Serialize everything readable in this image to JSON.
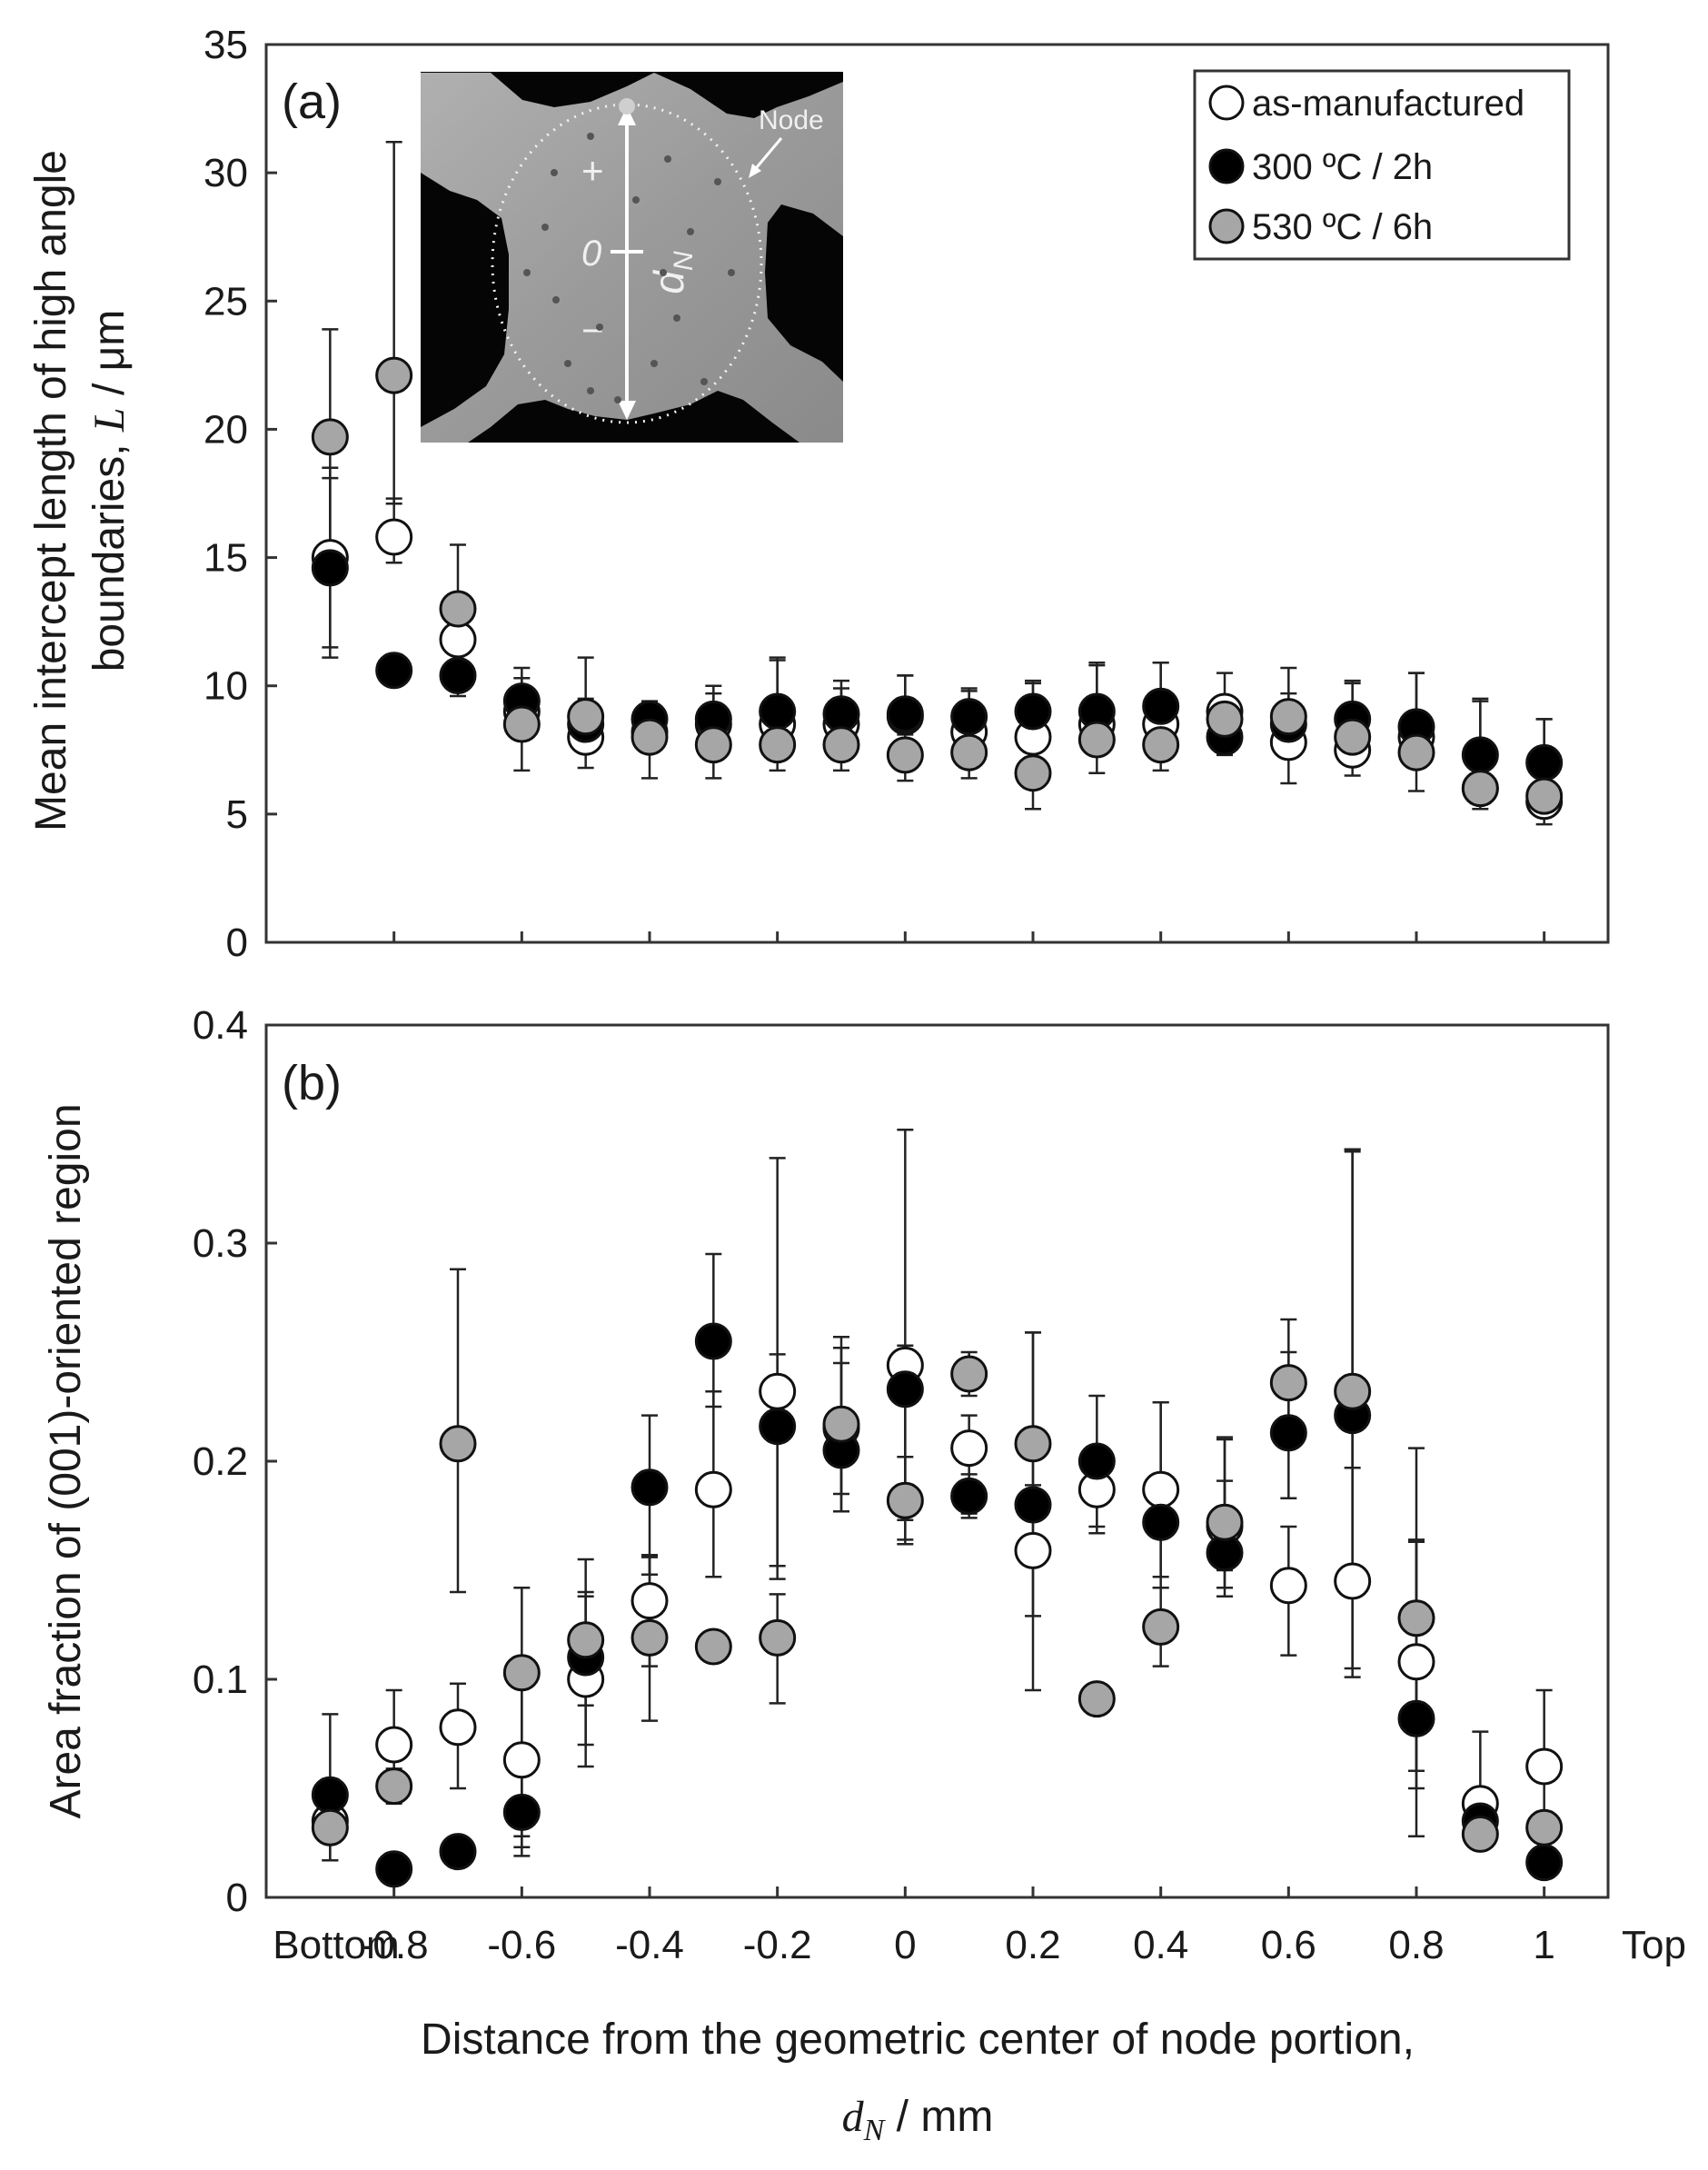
{
  "colors": {
    "as_manufactured": "#ffffff",
    "heat_300": "#000000",
    "heat_530": "#a6a6a6",
    "frame": "#333333"
  },
  "x_axis": {
    "title_line1": "Distance from the geometric center of node portion,",
    "title_line2_symbol": "d",
    "title_line2_subscript": "N",
    "title_line2_unit": " / mm",
    "tick_labels": [
      "Bottom",
      "-0.8",
      "-0.6",
      "-0.4",
      "-0.2",
      "0",
      "0.2",
      "0.4",
      "0.6",
      "0.8",
      "1",
      "Top"
    ],
    "tick_values": [
      -0.9,
      -0.8,
      -0.6,
      -0.4,
      -0.2,
      0,
      0.2,
      0.4,
      0.6,
      0.8,
      1.0,
      1.1
    ]
  },
  "inset": {
    "sign_plus": "+",
    "zero": "0",
    "sign_minus": "−",
    "d_label": "d",
    "d_sub": "N",
    "node_label": "Node"
  },
  "chart_data": [
    {
      "type": "scatter",
      "panel_label": "(a)",
      "ylabel_line1": "Mean intercept length of high angle",
      "ylabel_line2": "boundaries, ",
      "ylabel_symbol": "L",
      "ylabel_unit": " / μm",
      "xlim": [
        -1.0,
        1.1
      ],
      "ylim": [
        0,
        35
      ],
      "yticks": [
        "0",
        "5",
        "10",
        "15",
        "20",
        "25",
        "30",
        "35"
      ],
      "legend": [
        "as-manufactured",
        "300 ºC / 2h",
        "530 ºC / 6h"
      ],
      "x": [
        -0.9,
        -0.8,
        -0.7,
        -0.6,
        -0.5,
        -0.4,
        -0.3,
        -0.2,
        -0.1,
        0,
        0.1,
        0.2,
        0.3,
        0.4,
        0.5,
        0.6,
        0.7,
        0.8,
        0.9,
        1.0
      ],
      "series": [
        {
          "name": "as-manufactured",
          "values": [
            15.0,
            15.8,
            11.8,
            9.0,
            8.0,
            8.2,
            8.5,
            8.5,
            8.5,
            8.8,
            8.2,
            8.0,
            8.5,
            8.5,
            9.0,
            7.8,
            7.5,
            8.0,
            6.0,
            5.5
          ],
          "err_low": [
            3.5,
            1.0,
            0.5,
            0.7,
            0.6,
            0.6,
            0.6,
            0.6,
            0.6,
            0.6,
            0.5,
            0.6,
            0.6,
            0.6,
            0.5,
            0.6,
            0.6,
            0.6,
            0.5,
            0.5
          ],
          "err_high": [
            3.5,
            1.5,
            0.5,
            0.7,
            0.6,
            0.6,
            0.6,
            0.6,
            0.6,
            0.6,
            0.5,
            0.6,
            0.6,
            0.6,
            0.5,
            0.6,
            0.6,
            0.6,
            0.5,
            0.5
          ]
        },
        {
          "name": "300 ºC / 2h",
          "values": [
            14.6,
            10.6,
            10.4,
            9.4,
            8.5,
            8.7,
            8.7,
            9.0,
            8.9,
            8.9,
            8.8,
            9.0,
            9.0,
            9.2,
            8.0,
            8.5,
            8.7,
            8.4,
            7.3,
            7.0
          ],
          "err_low": [
            3.5,
            0.6,
            0.8,
            0.8,
            0.8,
            0.7,
            0.7,
            1.0,
            0.8,
            0.8,
            0.8,
            0.8,
            1.0,
            1.0,
            0.7,
            0.8,
            0.8,
            1.0,
            0.9,
            1.0
          ],
          "err_high": [
            3.5,
            0.6,
            0.8,
            0.9,
            1.0,
            0.7,
            1.0,
            2.0,
            1.0,
            1.5,
            1.0,
            1.1,
            1.8,
            1.7,
            1.5,
            1.2,
            1.4,
            2.1,
            2.1,
            1.7
          ]
        },
        {
          "name": "530 ºC / 6h",
          "values": [
            19.7,
            22.1,
            13.0,
            8.5,
            8.8,
            8.0,
            7.7,
            7.7,
            7.7,
            7.3,
            7.4,
            6.6,
            7.9,
            7.7,
            8.7,
            8.8,
            8.0,
            7.4,
            6.0,
            5.7
          ],
          "err_low": [
            4.3,
            5.0,
            2.5,
            1.8,
            2.0,
            1.6,
            1.3,
            1.0,
            1.0,
            1.0,
            1.0,
            1.4,
            1.3,
            1.0,
            1.1,
            2.6,
            1.5,
            1.5,
            0.8,
            1.1
          ],
          "err_high": [
            4.2,
            9.1,
            2.5,
            2.2,
            2.3,
            1.0,
            2.3,
            3.4,
            2.5,
            3.1,
            2.5,
            3.6,
            3.0,
            3.2,
            1.8,
            1.9,
            2.2,
            3.1,
            3.5,
            3.0
          ]
        }
      ]
    },
    {
      "type": "scatter",
      "panel_label": "(b)",
      "ylabel": "Area fraction of (001)-oriented region",
      "xlim": [
        -1.0,
        1.1
      ],
      "ylim": [
        0,
        0.4
      ],
      "yticks": [
        "0",
        "0.1",
        "0.2",
        "0.3",
        "0.4"
      ],
      "x": [
        -0.9,
        -0.8,
        -0.7,
        -0.6,
        -0.5,
        -0.4,
        -0.3,
        -0.2,
        -0.1,
        0,
        0.1,
        0.2,
        0.3,
        0.4,
        0.5,
        0.6,
        0.7,
        0.8,
        0.9,
        1.0
      ],
      "series": [
        {
          "name": "as-manufactured",
          "values": [
            0.035,
            0.07,
            0.078,
            0.063,
            0.1,
            0.136,
            0.187,
            0.232,
            0.215,
            0.244,
            0.206,
            0.159,
            0.187,
            0.187,
            0.17,
            0.143,
            0.145,
            0.108,
            0.043,
            0.06
          ],
          "err_low": [
            0.01,
            0.015,
            0.028,
            0.035,
            0.03,
            0.03,
            0.04,
            0.08,
            0.03,
            0.08,
            0.03,
            0.03,
            0.02,
            0.04,
            0.02,
            0.032,
            0.04,
            0.05,
            0.01,
            0.025
          ],
          "err_high": [
            0.01,
            0.025,
            0.02,
            0.033,
            0.04,
            0.02,
            0.045,
            0.017,
            0.03,
            0.108,
            0.015,
            0.03,
            0.02,
            0.04,
            0.04,
            0.027,
            0.197,
            0.055,
            0.033,
            0.035
          ]
        },
        {
          "name": "300 ºC / 2h",
          "values": [
            0.047,
            0.013,
            0.021,
            0.039,
            0.11,
            0.188,
            0.255,
            0.216,
            0.205,
            0.233,
            0.184,
            0.18,
            0.2,
            0.172,
            0.158,
            0.213,
            0.221,
            0.082,
            0.035,
            0.016
          ],
          "err_low": [
            0.03,
            0.005,
            0.005,
            0.02,
            0.05,
            0.04,
            0.03,
            0.07,
            0.028,
            0.06,
            0.01,
            0.085,
            0.03,
            0.03,
            0.02,
            0.03,
            0.12,
            0.032,
            0.012,
            0.005
          ],
          "err_high": [
            0.037,
            0.005,
            0.005,
            0.03,
            0.045,
            0.033,
            0.04,
            0.123,
            0.047,
            0.02,
            0.01,
            0.079,
            0.03,
            0.055,
            0.033,
            0.037,
            0.122,
            0.082,
            0.01,
            0.005
          ]
        },
        {
          "name": "530 ºC / 6h",
          "values": [
            0.032,
            0.051,
            0.208,
            0.103,
            0.118,
            0.119,
            0.115,
            0.119,
            0.217,
            0.182,
            0.24,
            0.208,
            0.091,
            0.124,
            0.172,
            0.236,
            0.232,
            0.128,
            0.029,
            0.032
          ],
          "err_low": [
            0.015,
            0.008,
            0.068,
            0.08,
            0.03,
            0.038,
            0.005,
            0.03,
            0.04,
            0.02,
            0.01,
            0.03,
            0.005,
            0.018,
            0.03,
            0.026,
            0.035,
            0.1,
            0.005,
            0.005
          ],
          "err_high": [
            0.015,
            0.008,
            0.08,
            0.039,
            0.02,
            0.038,
            0.005,
            0.02,
            0.04,
            0.02,
            0.01,
            0.051,
            0.005,
            0.018,
            0.039,
            0.029,
            0.111,
            0.078,
            0.005,
            0.005
          ]
        }
      ]
    }
  ]
}
